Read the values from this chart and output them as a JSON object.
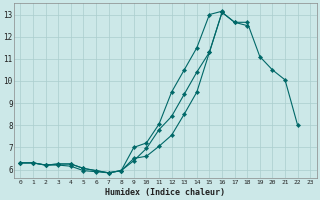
{
  "xlabel": "Humidex (Indice chaleur)",
  "xlim_min": -0.5,
  "xlim_max": 23.5,
  "ylim_min": 5.6,
  "ylim_max": 13.5,
  "xticks": [
    0,
    1,
    2,
    3,
    4,
    5,
    6,
    7,
    8,
    9,
    10,
    11,
    12,
    13,
    14,
    15,
    16,
    17,
    18,
    19,
    20,
    21,
    22,
    23
  ],
  "yticks": [
    6,
    7,
    8,
    9,
    10,
    11,
    12,
    13
  ],
  "bg_color": "#cce8e8",
  "line_color": "#006868",
  "grid_color": "#aacece",
  "line1_x": [
    0,
    1,
    2,
    3,
    4,
    5,
    6,
    7,
    8,
    9,
    10,
    11,
    12,
    13,
    14,
    15,
    16,
    17,
    18,
    19,
    20,
    21,
    22
  ],
  "line1_y": [
    6.3,
    6.3,
    6.2,
    6.2,
    6.15,
    5.95,
    5.9,
    5.85,
    5.95,
    6.5,
    6.6,
    7.05,
    7.55,
    8.5,
    9.5,
    11.3,
    13.1,
    12.65,
    12.65,
    11.1,
    10.5,
    10.05,
    8.0
  ],
  "line2_x": [
    0,
    1,
    2,
    3,
    4,
    5,
    6,
    7,
    8,
    9,
    10,
    11,
    12,
    13,
    14,
    15,
    16,
    17,
    18
  ],
  "line2_y": [
    6.3,
    6.3,
    6.2,
    6.25,
    6.25,
    6.05,
    5.95,
    5.85,
    5.95,
    6.4,
    6.95,
    7.8,
    8.4,
    9.4,
    10.4,
    11.3,
    13.1,
    12.65,
    12.5
  ],
  "line3_x": [
    0,
    1,
    2,
    3,
    4,
    5,
    6,
    7,
    8,
    9,
    10,
    11,
    12,
    13,
    14,
    15,
    16
  ],
  "line3_y": [
    6.3,
    6.3,
    6.2,
    6.25,
    6.25,
    6.05,
    5.95,
    5.85,
    5.95,
    7.0,
    7.2,
    8.05,
    9.5,
    10.5,
    11.5,
    13.0,
    13.15
  ]
}
